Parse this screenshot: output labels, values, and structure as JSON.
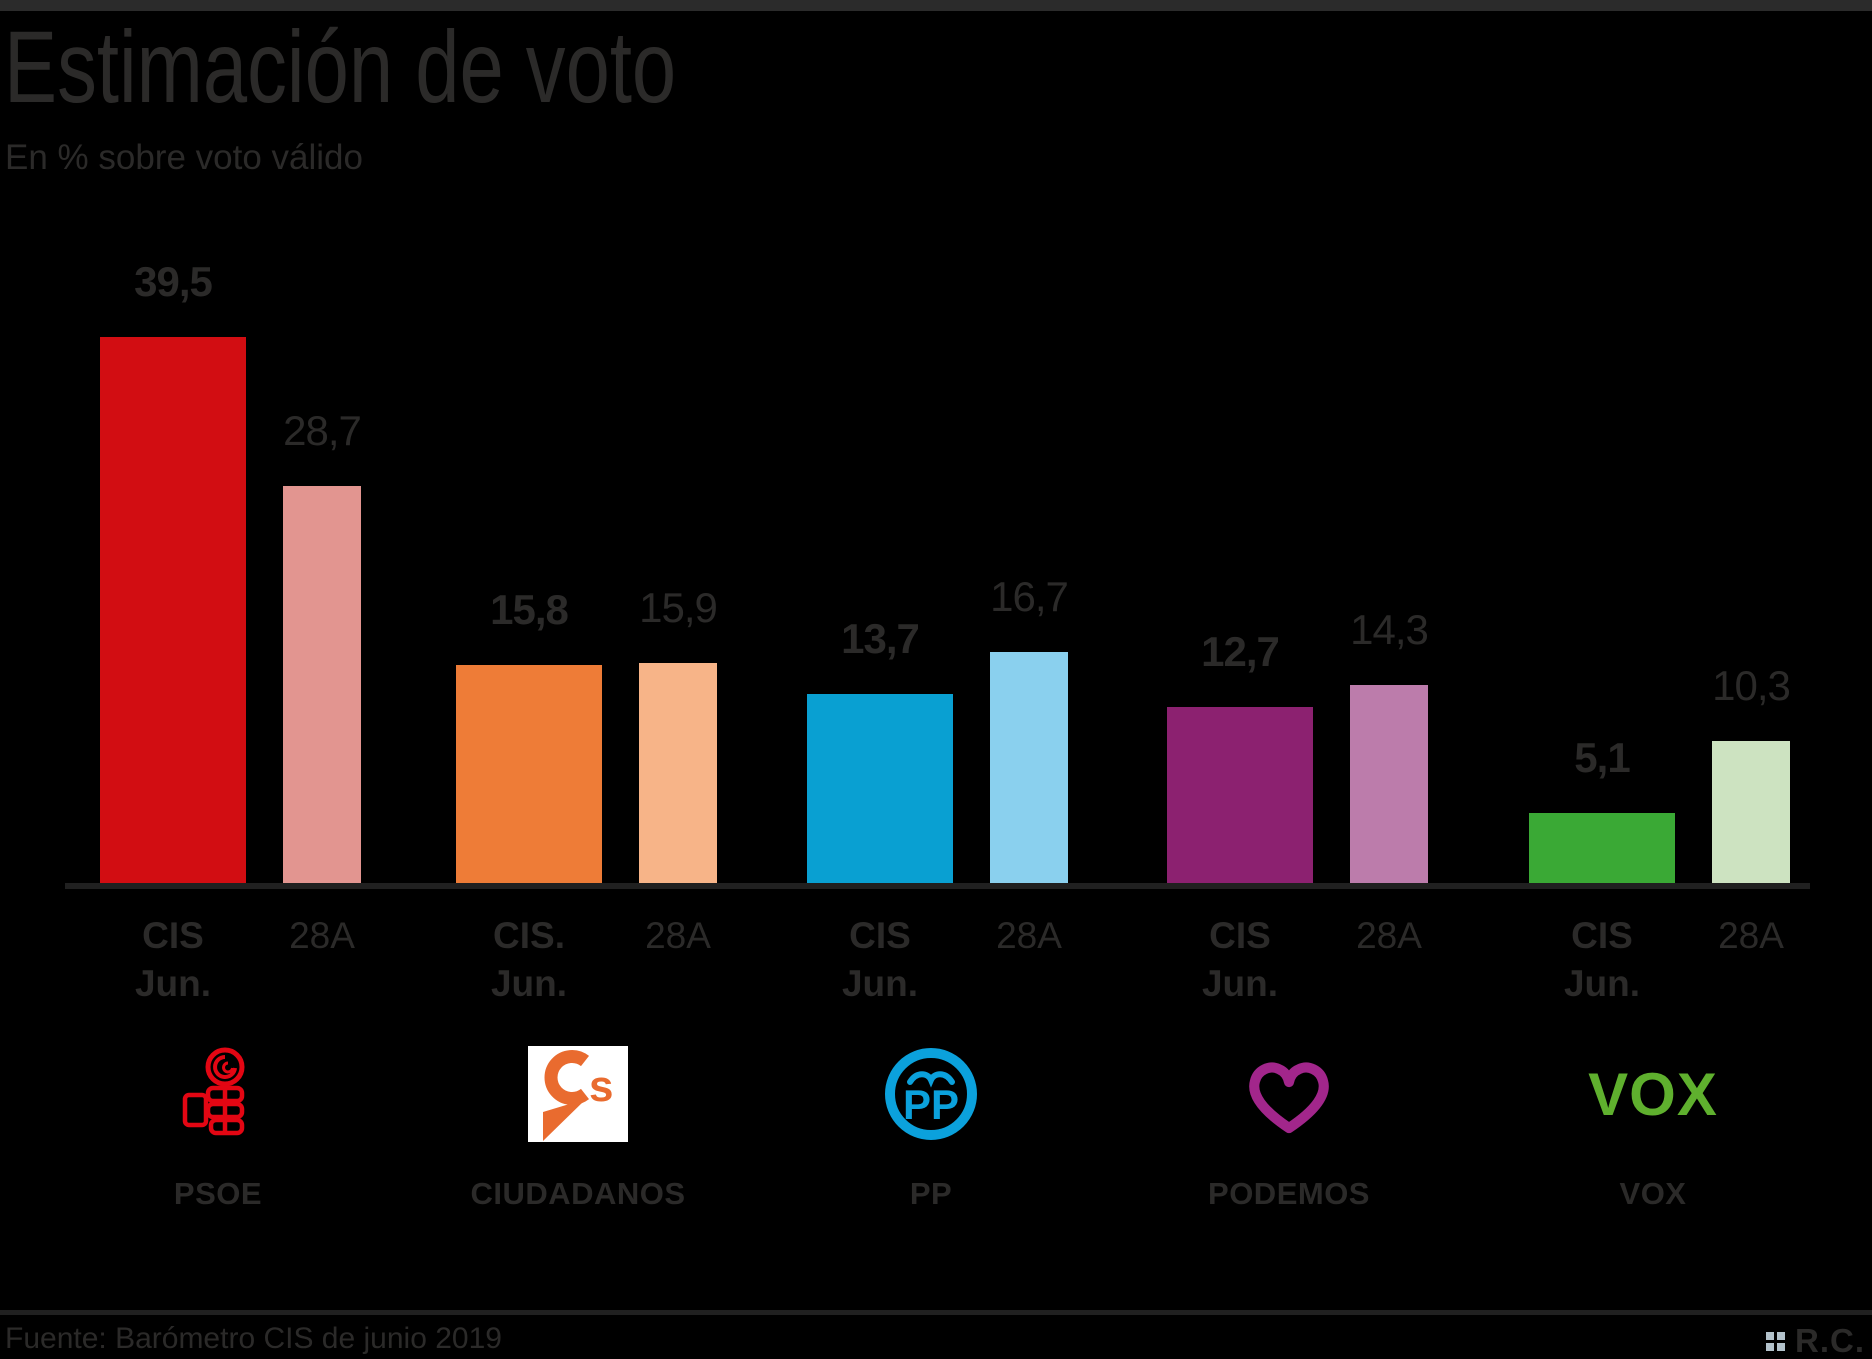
{
  "page": {
    "background": "#000000",
    "top_bar_color": "#2b2b2b",
    "line_color": "#202020",
    "text_color": "#2b2a29"
  },
  "header": {
    "title": "Estimación de voto",
    "subtitle": "En % sobre voto válido"
  },
  "footer": {
    "source": "Fuente: Barómetro CIS de junio 2019",
    "brand": "R.C.",
    "brand_squares_color": "#b3c2cb"
  },
  "chart_data": {
    "type": "bar",
    "title": "Estimación de voto",
    "subtitle": "En % sobre voto válido",
    "unit": "% sobre voto válido",
    "ylim": [
      0,
      40
    ],
    "grid": false,
    "legend_position": "none",
    "decimal_separator": ",",
    "categories": [
      "PSOE",
      "CIUDADANOS",
      "PP",
      "PODEMOS",
      "VOX"
    ],
    "series": [
      {
        "name": "CIS Jun.",
        "values": [
          39.5,
          15.8,
          13.7,
          12.7,
          5.1
        ]
      },
      {
        "name": "28A",
        "values": [
          28.7,
          15.9,
          16.7,
          14.3,
          10.3
        ]
      }
    ],
    "groups": [
      {
        "party": "PSOE",
        "logo": "psoe-fist-and-rose",
        "bars": [
          {
            "series": "CIS Jun.",
            "tick": [
              "CIS",
              "Jun."
            ],
            "value": 39.5,
            "display": "39,5",
            "color": "#d20d12",
            "emphasis": "bold"
          },
          {
            "series": "28A",
            "tick": [
              "28A"
            ],
            "value": 28.7,
            "display": "28,7",
            "color": "#e29590",
            "emphasis": "regular"
          }
        ]
      },
      {
        "party": "CIUDADANOS",
        "logo": "ciudadanos-cs",
        "bars": [
          {
            "series": "CIS Jun.",
            "tick": [
              "CIS.",
              "Jun."
            ],
            "value": 15.8,
            "display": "15,8",
            "color": "#ee7c37",
            "emphasis": "bold"
          },
          {
            "series": "28A",
            "tick": [
              "28A"
            ],
            "value": 15.9,
            "display": "15,9",
            "color": "#f7b488",
            "emphasis": "regular"
          }
        ]
      },
      {
        "party": "PP",
        "logo": "pp-gull-circle",
        "bars": [
          {
            "series": "CIS Jun.",
            "tick": [
              "CIS",
              "Jun."
            ],
            "value": 13.7,
            "display": "13,7",
            "color": "#09a0d2",
            "emphasis": "bold"
          },
          {
            "series": "28A",
            "tick": [
              "28A"
            ],
            "value": 16.7,
            "display": "16,7",
            "color": "#8ad0ee",
            "emphasis": "regular"
          }
        ]
      },
      {
        "party": "PODEMOS",
        "logo": "podemos-heart",
        "bars": [
          {
            "series": "CIS Jun.",
            "tick": [
              "CIS",
              "Jun."
            ],
            "value": 12.7,
            "display": "12,7",
            "color": "#8c2170",
            "emphasis": "bold"
          },
          {
            "series": "28A",
            "tick": [
              "28A"
            ],
            "value": 14.3,
            "display": "14,3",
            "color": "#bc7cab",
            "emphasis": "regular"
          }
        ]
      },
      {
        "party": "VOX",
        "logo": "vox-wordmark",
        "bars": [
          {
            "series": "CIS Jun.",
            "tick": [
              "CIS",
              "Jun."
            ],
            "value": 5.1,
            "display": "5,1",
            "color": "#3aa935",
            "emphasis": "bold"
          },
          {
            "series": "28A",
            "tick": [
              "28A"
            ],
            "value": 10.3,
            "display": "10,3",
            "color": "#cde3c1",
            "emphasis": "regular"
          }
        ]
      }
    ],
    "logo_colors": {
      "psoe": "#e30613",
      "ciudadanos": "#e96b2f",
      "pp": "#0ba1dc",
      "podemos": "#a2268b",
      "vox": "#5fb02e"
    }
  }
}
